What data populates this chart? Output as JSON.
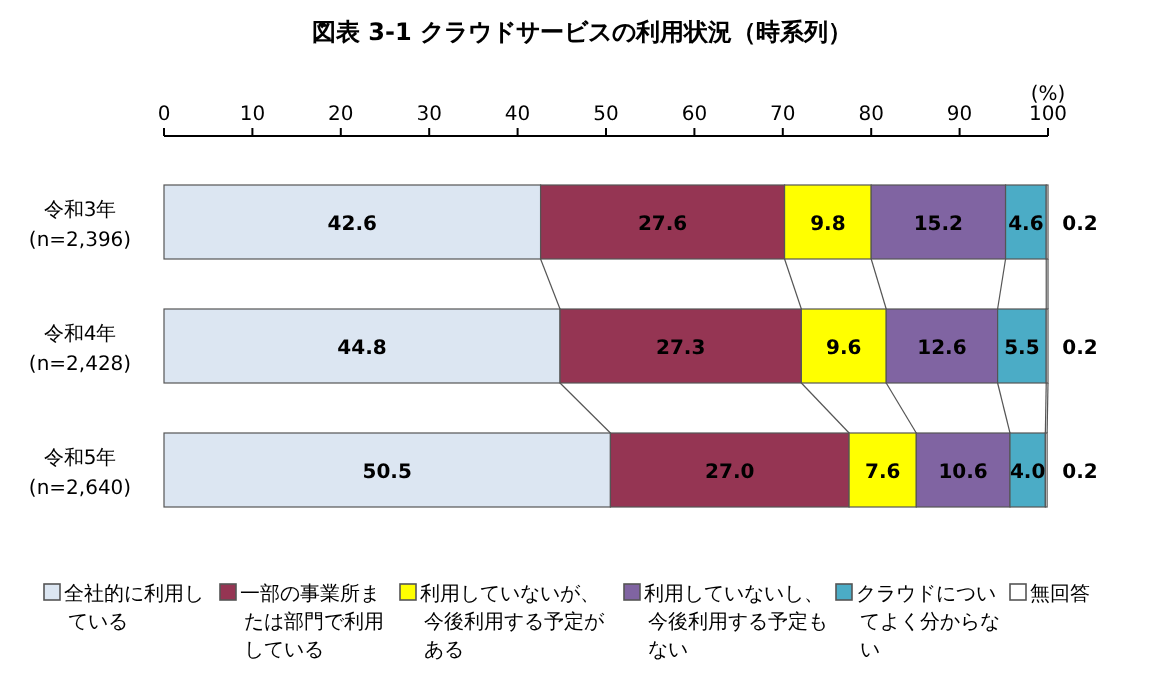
{
  "chart_data": {
    "type": "bar",
    "orientation": "horizontal",
    "stacked": true,
    "title": "図表 3-1 クラウドサービスの利用状況（時系列）",
    "xlabel": "(%)",
    "categories": [
      "令和3年\n(n=2,396)",
      "令和4年\n(n=2,428)",
      "令和5年\n(n=2,640)"
    ],
    "xlim": [
      0,
      100
    ],
    "xticks": [
      0,
      10,
      20,
      30,
      40,
      50,
      60,
      70,
      80,
      90,
      100
    ],
    "legend": "bottom",
    "grid": false,
    "series": [
      {
        "name": "全社的に利用している",
        "color": "#dce6f2",
        "values": [
          42.6,
          44.8,
          50.5
        ],
        "value_labels": [
          "42.6",
          "44.8",
          "50.5"
        ]
      },
      {
        "name": "一部の事業所または部門で利用している",
        "color": "#953553",
        "values": [
          27.6,
          27.3,
          27.0
        ],
        "value_labels": [
          "27.6",
          "27.3",
          "27.0"
        ]
      },
      {
        "name": "利用していないが、今後利用する予定がある",
        "color": "#ffff00",
        "values": [
          9.8,
          9.6,
          7.6
        ],
        "value_labels": [
          "9.8",
          "9.6",
          "7.6"
        ]
      },
      {
        "name": "利用していないし、今後利用する予定もない",
        "color": "#8064a2",
        "values": [
          15.2,
          12.6,
          10.6
        ],
        "value_labels": [
          "15.2",
          "12.6",
          "10.6"
        ]
      },
      {
        "name": "クラウドについてよく分からない",
        "color": "#4bacc6",
        "values": [
          4.6,
          5.5,
          4.0
        ],
        "value_labels": [
          "4.6",
          "5.5",
          "4.0"
        ]
      },
      {
        "name": "無回答",
        "color": "#ffffff",
        "values": [
          0.2,
          0.2,
          0.2
        ],
        "value_labels": [
          "0.2",
          "0.2",
          "0.2"
        ]
      }
    ]
  }
}
